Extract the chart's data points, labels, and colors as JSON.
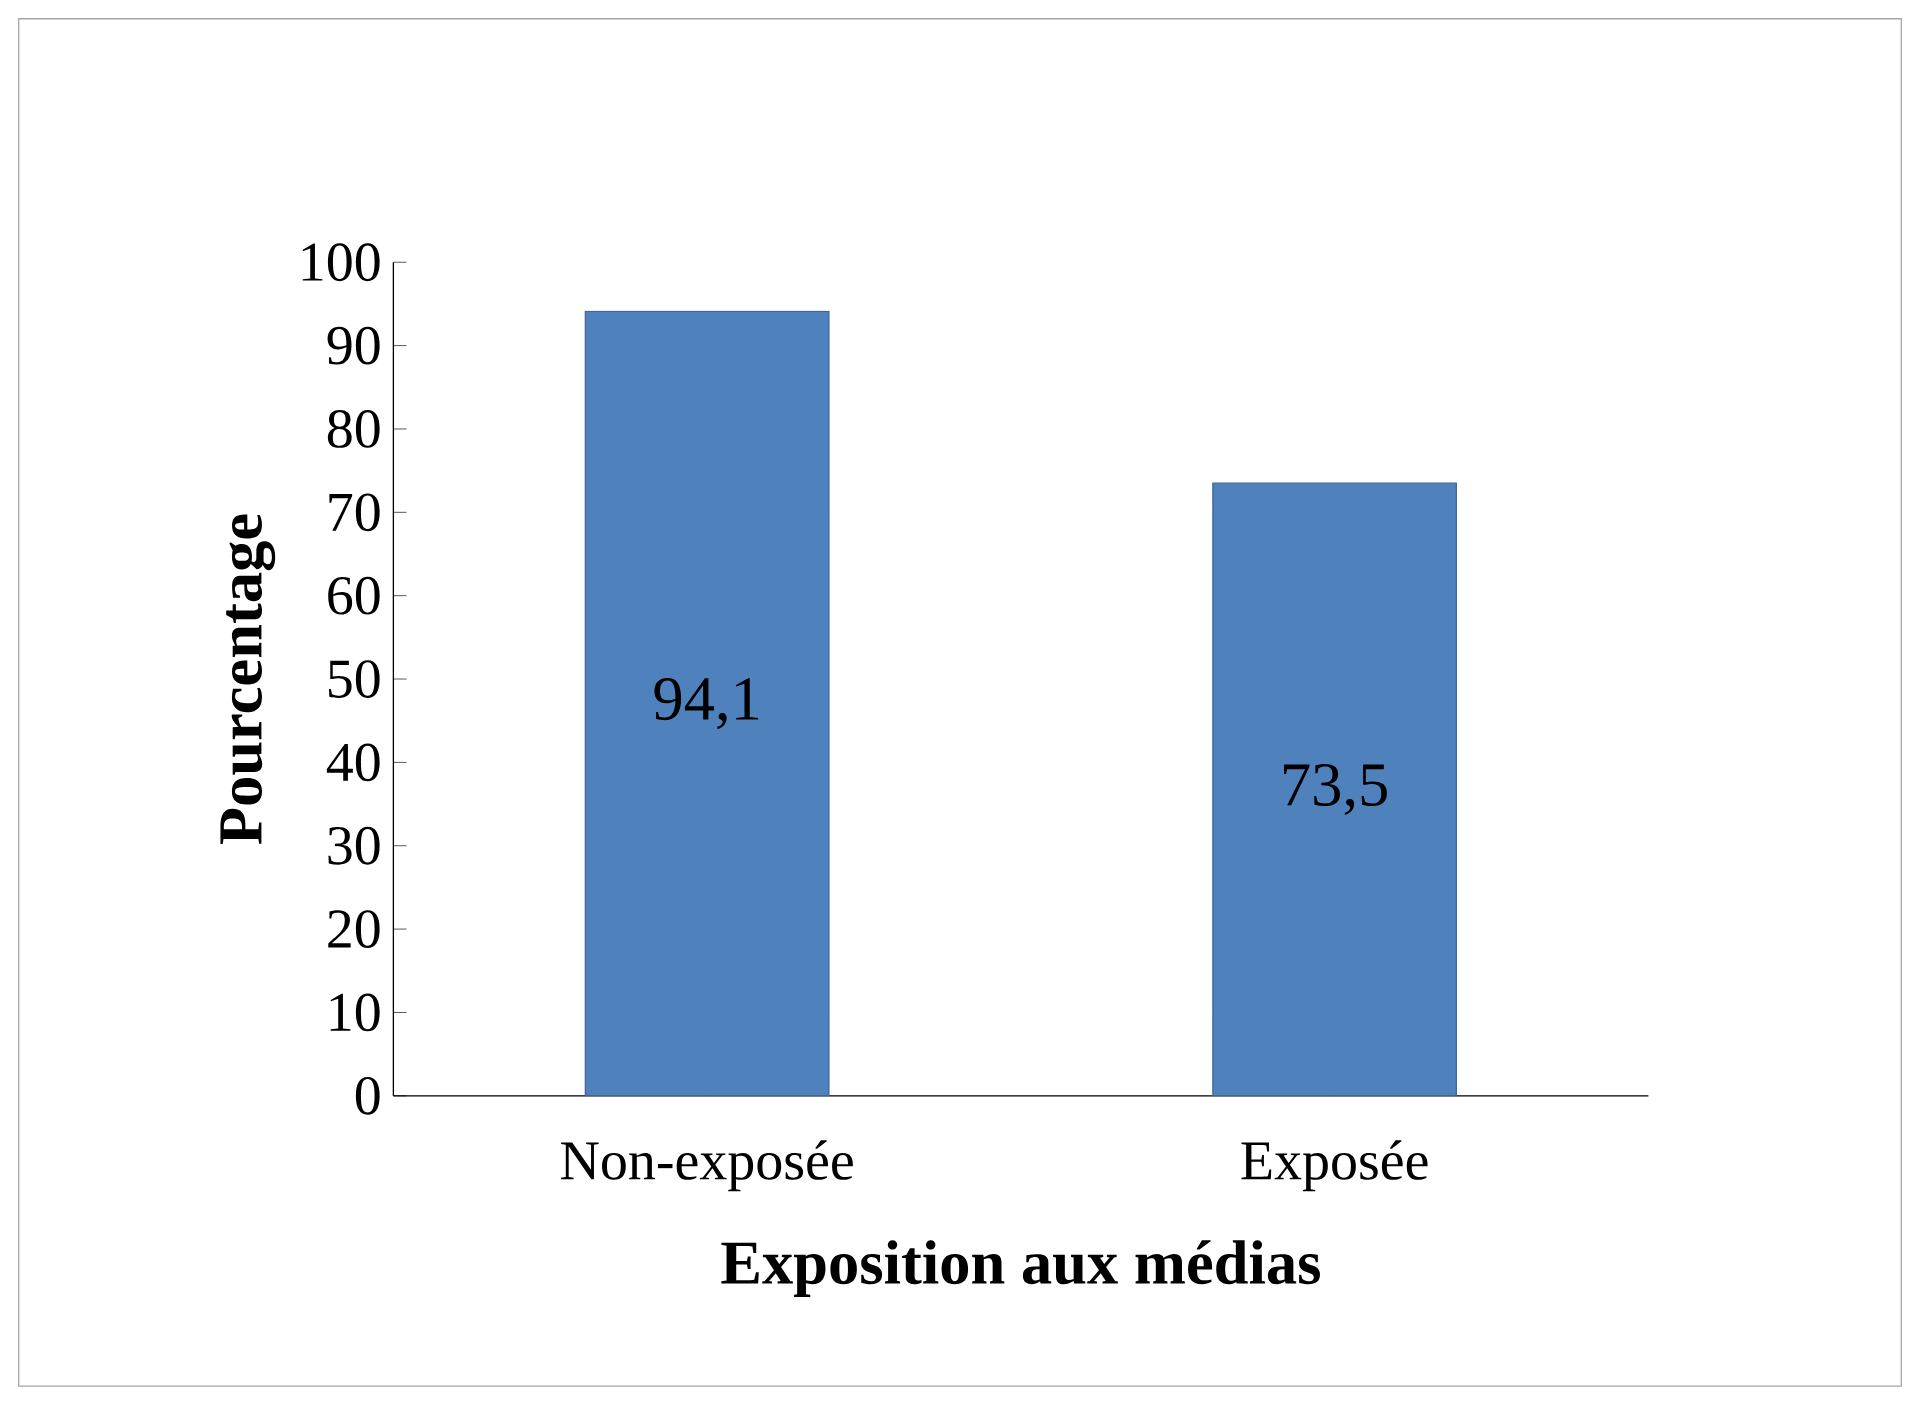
{
  "chart_data": {
    "type": "bar",
    "categories": [
      "Non-exposée",
      "Exposée"
    ],
    "values": [
      94.1,
      73.5
    ],
    "value_labels": [
      "94,1",
      "73,5"
    ],
    "color": "#4f81bd",
    "xlabel": "Exposition aux médias",
    "ylabel": "Pourcentage",
    "ylim": [
      0,
      100
    ],
    "yticks": [
      0,
      10,
      20,
      30,
      40,
      50,
      60,
      70,
      80,
      90,
      100
    ]
  }
}
